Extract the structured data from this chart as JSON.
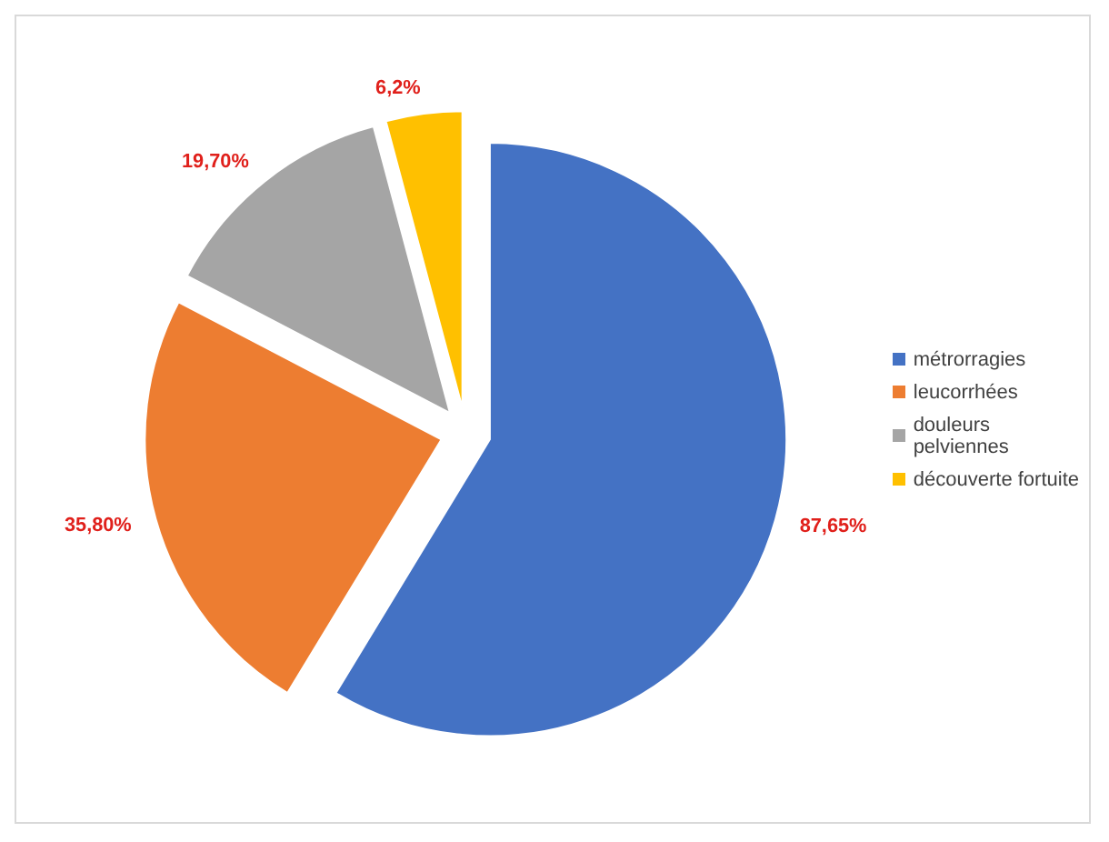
{
  "chart_data": {
    "type": "pie",
    "categories": [
      "métrorragies",
      "leucorrhées",
      "douleurs pelviennes",
      "découverte fortuite"
    ],
    "values": [
      87.65,
      35.8,
      19.7,
      6.2
    ],
    "value_labels": [
      "87,65%",
      "35,80%",
      "19,70%",
      "6,2%"
    ],
    "colors": [
      "#4472c4",
      "#ed7d31",
      "#a5a5a5",
      "#ffc000"
    ],
    "legend": "right"
  }
}
